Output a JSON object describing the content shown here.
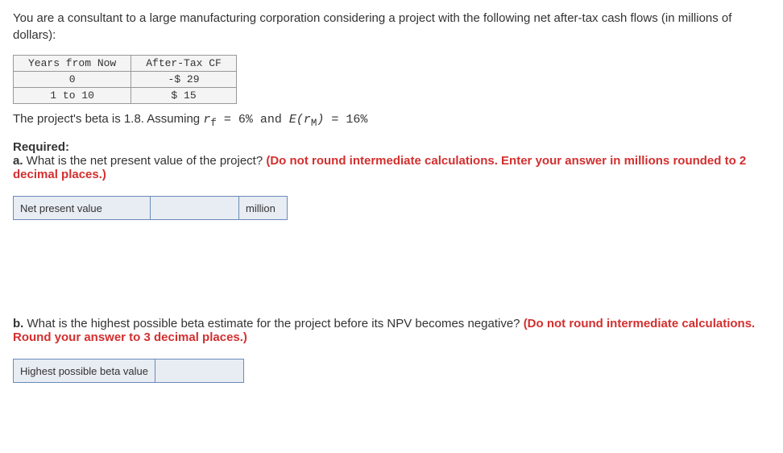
{
  "intro": "You are a consultant to a large manufacturing corporation considering a project with the following net after-tax cash flows (in millions of dollars):",
  "cfTable": {
    "headers": {
      "years": "Years from Now",
      "cf": "After-Tax CF"
    },
    "rows": [
      {
        "years": "0",
        "cf": "-$ 29"
      },
      {
        "years": "1 to 10",
        "cf": "$ 15"
      }
    ]
  },
  "betaLine": {
    "prefix": "The project's beta is 1.8. Assuming ",
    "rf": "r",
    "rfSub": "f",
    "eq1": " = 6% and ",
    "erm": "E(r",
    "ermSub": "M",
    "ermClose": ")",
    "eq2": " = 16%"
  },
  "requiredLabel": "Required:",
  "partA": {
    "label": "a.",
    "question": " What is the net present value of the project? ",
    "instruction": "(Do not round intermediate calculations. Enter your answer in millions rounded to 2 decimal places.)"
  },
  "npvTable": {
    "label": "Net present value",
    "unit": "million"
  },
  "partB": {
    "label": "b.",
    "question": " What is the highest possible beta estimate for the project before its NPV becomes negative? ",
    "instruction": "(Do not round intermediate calculations. Round your answer to 3 decimal places.)"
  },
  "betaTable": {
    "label": "Highest possible beta value"
  }
}
